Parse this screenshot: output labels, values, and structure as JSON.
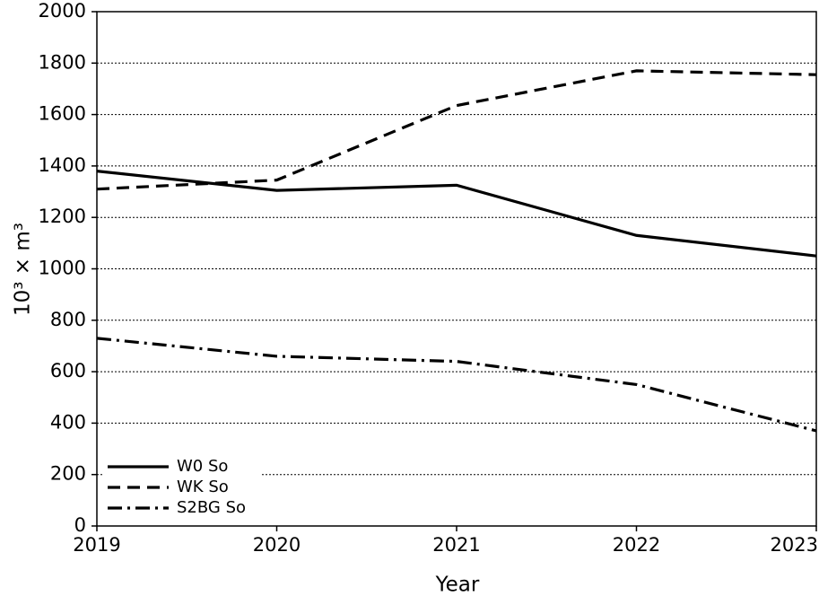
{
  "chart_data": {
    "type": "line",
    "x_label": "Year",
    "y_label": "10³ × m³",
    "x": [
      2019,
      2020,
      2021,
      2022,
      2023
    ],
    "xlim": [
      2019,
      2023
    ],
    "xticks": [
      2019,
      2020,
      2021,
      2022,
      2023
    ],
    "ylim": [
      0,
      2000
    ],
    "yticks": [
      0,
      200,
      400,
      600,
      800,
      1000,
      1200,
      1400,
      1600,
      1800,
      2000
    ],
    "grid": true,
    "legend": "lower left",
    "series": [
      {
        "name": "W0 So",
        "color": "#000000",
        "linestyle": "solid",
        "values": [
          1380,
          1305,
          1325,
          1130,
          1050
        ]
      },
      {
        "name": "WK So",
        "color": "#000000",
        "linestyle": "dashed",
        "values": [
          1310,
          1345,
          1635,
          1770,
          1755
        ]
      },
      {
        "name": "S2BG So",
        "color": "#000000",
        "linestyle": "dashdot",
        "values": [
          730,
          660,
          640,
          550,
          370
        ]
      }
    ]
  }
}
